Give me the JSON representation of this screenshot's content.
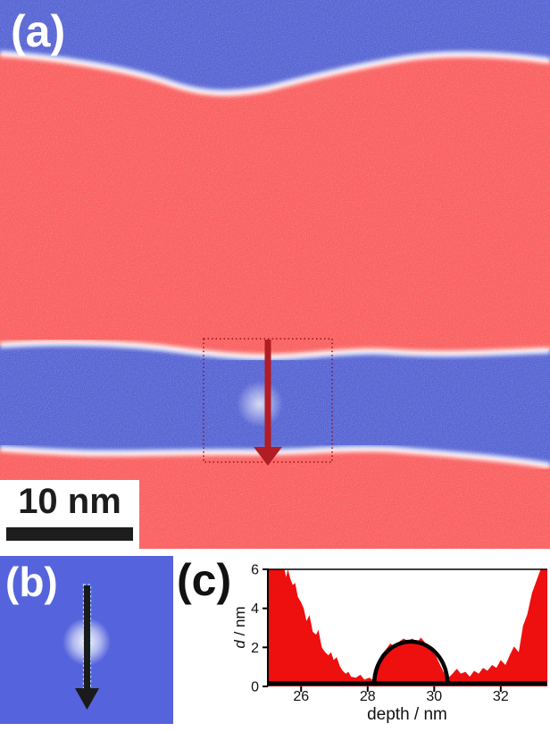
{
  "panel_a": {
    "label": "(a)",
    "scalebar": {
      "text": "10 nm"
    },
    "colors": {
      "matrix_red": "#fa5e5e",
      "band_blue": "#5563d3",
      "boundary_white": "#ffffff",
      "roi_box_red": "#990f0f",
      "arrow_red": "#b11c25"
    }
  },
  "panel_b": {
    "label": "(b)",
    "colors": {
      "background_blue": "#5564dc",
      "arrow_black": "#1a1a1a",
      "arrow_outline_cyan": "#a5dcef"
    }
  },
  "panel_c": {
    "label": "(c)"
  },
  "chart_data": {
    "type": "area",
    "title": "",
    "xlabel": "depth / nm",
    "ylabel": "d / nm",
    "xlim": [
      25,
      33.4
    ],
    "ylim": [
      0,
      6
    ],
    "xticks": [
      26,
      28,
      30,
      32
    ],
    "yticks": [
      0,
      2,
      4,
      6
    ],
    "grid": false,
    "legend": "none",
    "area_color": "#ee0f0f",
    "axis_color": "#000000",
    "fit_color": "#000000",
    "baseline_fit": {
      "d": 0.15
    },
    "semicircle_fit": {
      "center_depth": 29.3,
      "half_width": 1.1,
      "peak_d": 2.3
    },
    "profile": [
      [
        25.0,
        6
      ],
      [
        25.5,
        6
      ],
      [
        25.55,
        5.6
      ],
      [
        25.6,
        6
      ],
      [
        25.68,
        5.5
      ],
      [
        25.75,
        5.2
      ],
      [
        25.82,
        5.3
      ],
      [
        25.9,
        4.6
      ],
      [
        26.0,
        4.3
      ],
      [
        26.08,
        4.0
      ],
      [
        26.16,
        3.35
      ],
      [
        26.25,
        3.65
      ],
      [
        26.35,
        2.8
      ],
      [
        26.45,
        2.65
      ],
      [
        26.52,
        2.9
      ],
      [
        26.62,
        2.0
      ],
      [
        26.72,
        1.75
      ],
      [
        26.82,
        1.6
      ],
      [
        26.9,
        1.75
      ],
      [
        26.98,
        1.35
      ],
      [
        27.07,
        1.5
      ],
      [
        27.16,
        1.05
      ],
      [
        27.25,
        0.8
      ],
      [
        27.34,
        0.65
      ],
      [
        27.42,
        0.75
      ],
      [
        27.5,
        0.5
      ],
      [
        27.65,
        0.45
      ],
      [
        27.78,
        0.6
      ],
      [
        27.9,
        0.35
      ],
      [
        28.05,
        0.45
      ],
      [
        28.18,
        0.3
      ],
      [
        28.28,
        0.8
      ],
      [
        28.4,
        1.6
      ],
      [
        28.55,
        1.9
      ],
      [
        28.68,
        2.2
      ],
      [
        28.8,
        2.05
      ],
      [
        28.95,
        2.3
      ],
      [
        29.08,
        2.45
      ],
      [
        29.2,
        2.35
      ],
      [
        29.35,
        2.45
      ],
      [
        29.48,
        2.25
      ],
      [
        29.6,
        2.5
      ],
      [
        29.75,
        2.2
      ],
      [
        29.88,
        1.9
      ],
      [
        30.0,
        1.75
      ],
      [
        30.15,
        1.2
      ],
      [
        30.28,
        0.75
      ],
      [
        30.4,
        0.4
      ],
      [
        30.55,
        0.65
      ],
      [
        30.68,
        0.9
      ],
      [
        30.8,
        0.65
      ],
      [
        30.94,
        0.75
      ],
      [
        31.07,
        0.5
      ],
      [
        31.2,
        0.8
      ],
      [
        31.34,
        0.65
      ],
      [
        31.47,
        0.95
      ],
      [
        31.6,
        0.8
      ],
      [
        31.74,
        1.1
      ],
      [
        31.87,
        0.95
      ],
      [
        32.0,
        1.35
      ],
      [
        32.14,
        1.1
      ],
      [
        32.27,
        1.6
      ],
      [
        32.4,
        2.05
      ],
      [
        32.54,
        1.75
      ],
      [
        32.67,
        3.1
      ],
      [
        32.8,
        3.7
      ],
      [
        32.94,
        4.8
      ],
      [
        33.07,
        5.4
      ],
      [
        33.2,
        6
      ],
      [
        33.4,
        6
      ]
    ]
  }
}
